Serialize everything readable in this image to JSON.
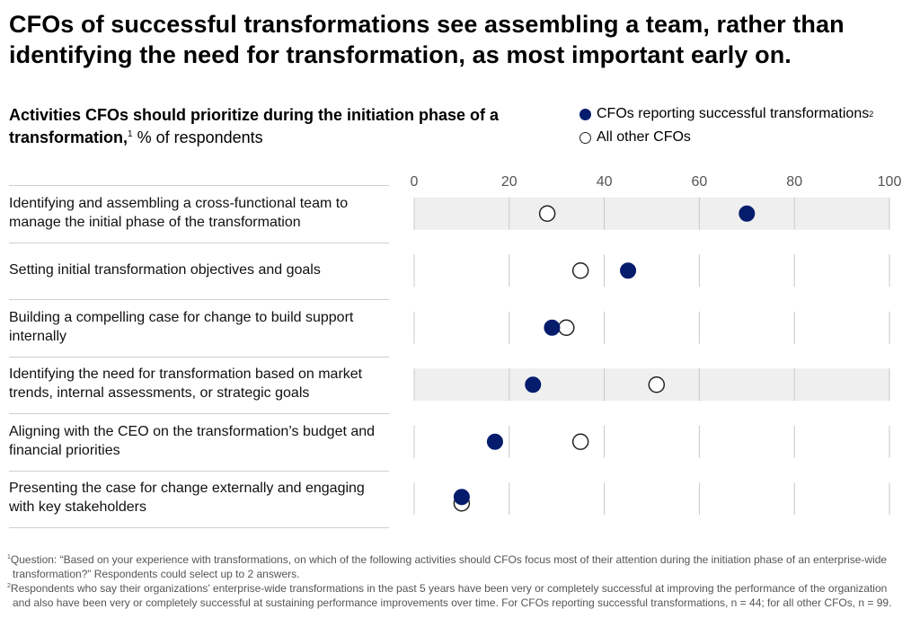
{
  "header": {
    "title": "CFOs of successful transformations see assembling a team, rather than identifying the need for transformation, as most important early on.",
    "subtitle_bold": "Activities CFOs should prioritize during the initiation phase of a transformation,",
    "subtitle_sup": "1",
    "subtitle_unit": " % of respondents"
  },
  "legend": {
    "items": [
      {
        "label": "CFOs reporting successful transformations",
        "sup": "2",
        "style": "filled"
      },
      {
        "label": "All other CFOs",
        "sup": "",
        "style": "hollow"
      }
    ]
  },
  "chart_data": {
    "type": "scatter",
    "title": "Activities CFOs should prioritize during the initiation phase of a transformation, % of respondents",
    "xlim": [
      0,
      100
    ],
    "x_ticks": [
      "0",
      "20",
      "40",
      "60",
      "80",
      "100"
    ],
    "grid": true,
    "categories": [
      "Identifying and assembling a cross-functional team to manage the initial phase of the transformation",
      "Setting initial transformation objectives and goals",
      "Building a compelling case for change to build support internally",
      "Identifying the need for transformation based on market trends, internal assessments, or strategic goals",
      "Aligning with the CEO on the transformation’s budget and financial priorities",
      "Presenting the case for change externally and engaging with key stakeholders"
    ],
    "highlighted_rows": [
      0,
      3
    ],
    "series": [
      {
        "name": "CFOs reporting successful transformations",
        "color": "#051c6d",
        "style": "filled",
        "values": [
          70,
          45,
          29,
          25,
          17,
          10
        ]
      },
      {
        "name": "All other CFOs",
        "color": "#222222",
        "style": "hollow",
        "values": [
          28,
          35,
          32,
          51,
          35,
          10
        ]
      }
    ]
  },
  "footnotes": [
    {
      "sup": "1",
      "text": "Question: “Based on your experience with transformations, on which of the following activities should CFOs focus most of their attention during the initiation phase of an enterprise-wide transformation?” Respondents could select up to 2 answers."
    },
    {
      "sup": "2",
      "text": "Respondents who say their organizations’ enterprise-wide transformations in the past 5 years have been very or completely successful at improving the performance of the organization and also have been very or completely successful at sustaining performance improvements over time. For CFOs reporting successful transformations, n = 44; for all other CFOs, n = 99."
    }
  ]
}
